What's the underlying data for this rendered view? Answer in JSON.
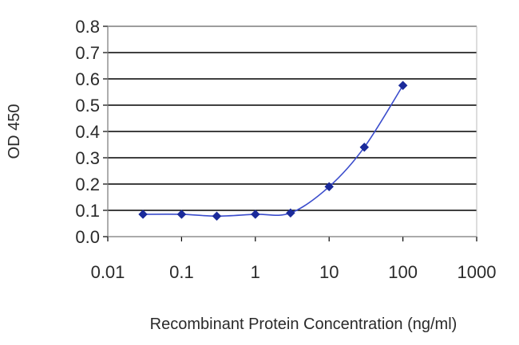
{
  "chart_data": {
    "type": "line",
    "title": "",
    "xlabel": "Recombinant Protein Concentration (ng/ml)",
    "ylabel": "OD 450",
    "x_scale": "log",
    "xlim": [
      0.01,
      1000
    ],
    "ylim": [
      0,
      0.8
    ],
    "x_ticks": [
      {
        "value": 0.01,
        "label": "0.01"
      },
      {
        "value": 0.1,
        "label": "0.1"
      },
      {
        "value": 1,
        "label": "1"
      },
      {
        "value": 10,
        "label": "10"
      },
      {
        "value": 100,
        "label": "100"
      },
      {
        "value": 1000,
        "label": "1000"
      }
    ],
    "y_ticks": [
      {
        "value": 0.0,
        "label": "0.0"
      },
      {
        "value": 0.1,
        "label": "0.1"
      },
      {
        "value": 0.2,
        "label": "0.2"
      },
      {
        "value": 0.3,
        "label": "0.3"
      },
      {
        "value": 0.4,
        "label": "0.4"
      },
      {
        "value": 0.5,
        "label": "0.5"
      },
      {
        "value": 0.6,
        "label": "0.6"
      },
      {
        "value": 0.7,
        "label": "0.7"
      },
      {
        "value": 0.8,
        "label": "0.8"
      }
    ],
    "grid": "horizontal",
    "series": [
      {
        "color": "#1a2a9a",
        "points": [
          {
            "x": 0.03,
            "y": 0.085
          },
          {
            "x": 0.1,
            "y": 0.085
          },
          {
            "x": 0.3,
            "y": 0.078
          },
          {
            "x": 1,
            "y": 0.085
          },
          {
            "x": 3,
            "y": 0.09
          },
          {
            "x": 10,
            "y": 0.19
          },
          {
            "x": 30,
            "y": 0.34
          },
          {
            "x": 100,
            "y": 0.575
          }
        ]
      }
    ]
  }
}
